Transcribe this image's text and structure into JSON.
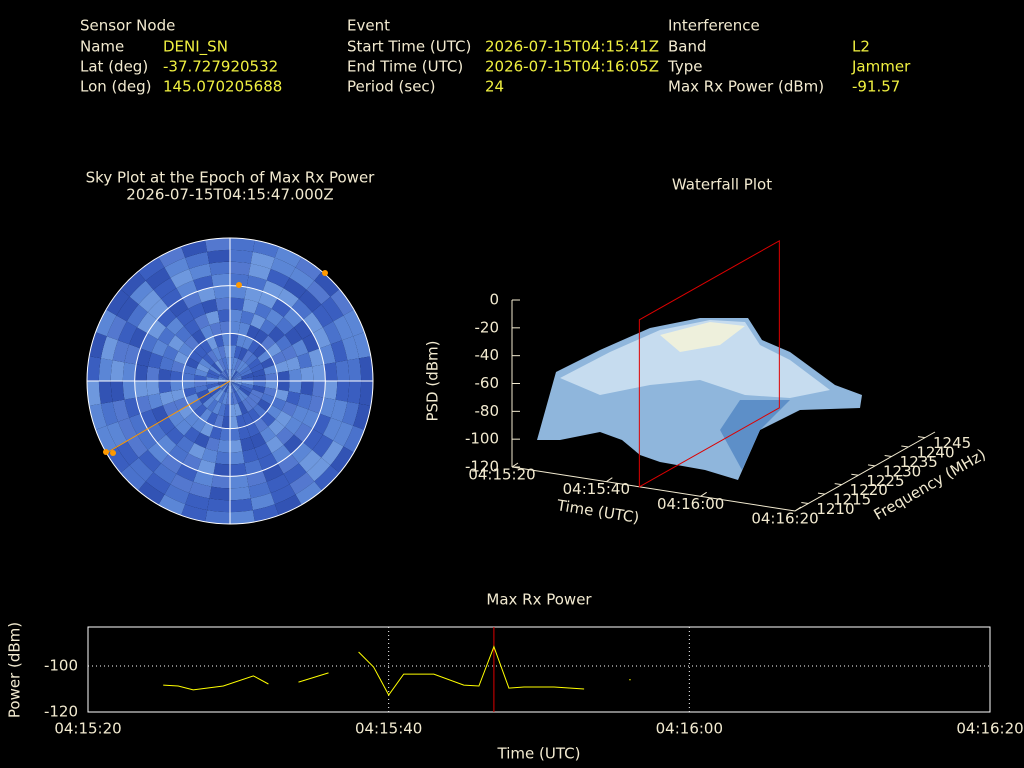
{
  "header": {
    "sensor_node": {
      "title": "Sensor Node",
      "rows": [
        [
          "Name",
          "DENI_SN"
        ],
        [
          "Lat (deg)",
          "-37.727920532"
        ],
        [
          "Lon (deg)",
          "145.070205688"
        ]
      ]
    },
    "event": {
      "title": "Event",
      "rows": [
        [
          "Start Time (UTC)",
          "2026-07-15T04:15:41Z"
        ],
        [
          "End Time (UTC)",
          "2026-07-15T04:16:05Z"
        ],
        [
          "Period (sec)",
          "24"
        ]
      ]
    },
    "interference": {
      "title": "Interference",
      "rows": [
        [
          "Band",
          "L2"
        ],
        [
          "Type",
          "Jammer"
        ],
        [
          "Max Rx Power (dBm)",
          "-91.57"
        ]
      ]
    }
  },
  "chart_data": [
    {
      "type": "polar",
      "title": "Sky Plot at the Epoch of Max Rx Power",
      "subtitle": "2026-07-15T04:15:47.000Z"
    },
    {
      "type": "surface",
      "title": "Waterfall Plot",
      "zlabel": "PSD (dBm)",
      "xlabel": "Time (UTC)",
      "ylabel": "Frequency (MHz)",
      "zlim": [
        -120,
        0
      ],
      "zticks": [
        0,
        -20,
        -40,
        -60,
        -80,
        -100,
        -120
      ],
      "xlim": [
        "04:15:20",
        "04:16:20"
      ],
      "xticks": [
        "04:15:20",
        "04:15:40",
        "04:16:00",
        "04:16:20"
      ],
      "ylim": [
        1206,
        1248
      ],
      "yticks": [
        1210,
        1215,
        1220,
        1225,
        1230,
        1235,
        1240,
        1245
      ]
    },
    {
      "type": "line",
      "title": "Max Rx Power",
      "xlabel": "Time (UTC)",
      "ylabel": "Power (dBm)",
      "color": "#ffff00",
      "grid": true,
      "xlim": [
        "04:15:20",
        "04:16:20"
      ],
      "xticks": [
        "04:15:20",
        "04:15:40",
        "04:16:00",
        "04:16:20"
      ],
      "ylim": [
        -120,
        -83
      ],
      "yticks": [
        -120,
        -100
      ],
      "x": [
        "04:15:25",
        "04:15:26",
        "04:15:27",
        "04:15:29",
        "04:15:31",
        "04:15:32",
        "04:15:33",
        "04:15:34",
        "04:15:36",
        "04:15:37",
        "04:15:38",
        "04:15:39",
        "04:15:40",
        "04:15:41",
        "04:15:43",
        "04:15:45",
        "04:15:46",
        "04:15:47",
        "04:15:48",
        "04:15:49",
        "04:15:50",
        "04:15:51",
        "04:15:53",
        "04:15:54",
        "04:15:56"
      ],
      "values": [
        -108.3,
        -108.7,
        -110.4,
        -108.7,
        -104.3,
        -107.8,
        null,
        -107.0,
        -103.0,
        null,
        -93.9,
        -100.4,
        -112.6,
        -103.5,
        -103.5,
        -108.3,
        -108.7,
        -91.57,
        -109.6,
        -109.1,
        -109.1,
        -109.1,
        -110.0,
        null,
        -106.0
      ]
    }
  ]
}
